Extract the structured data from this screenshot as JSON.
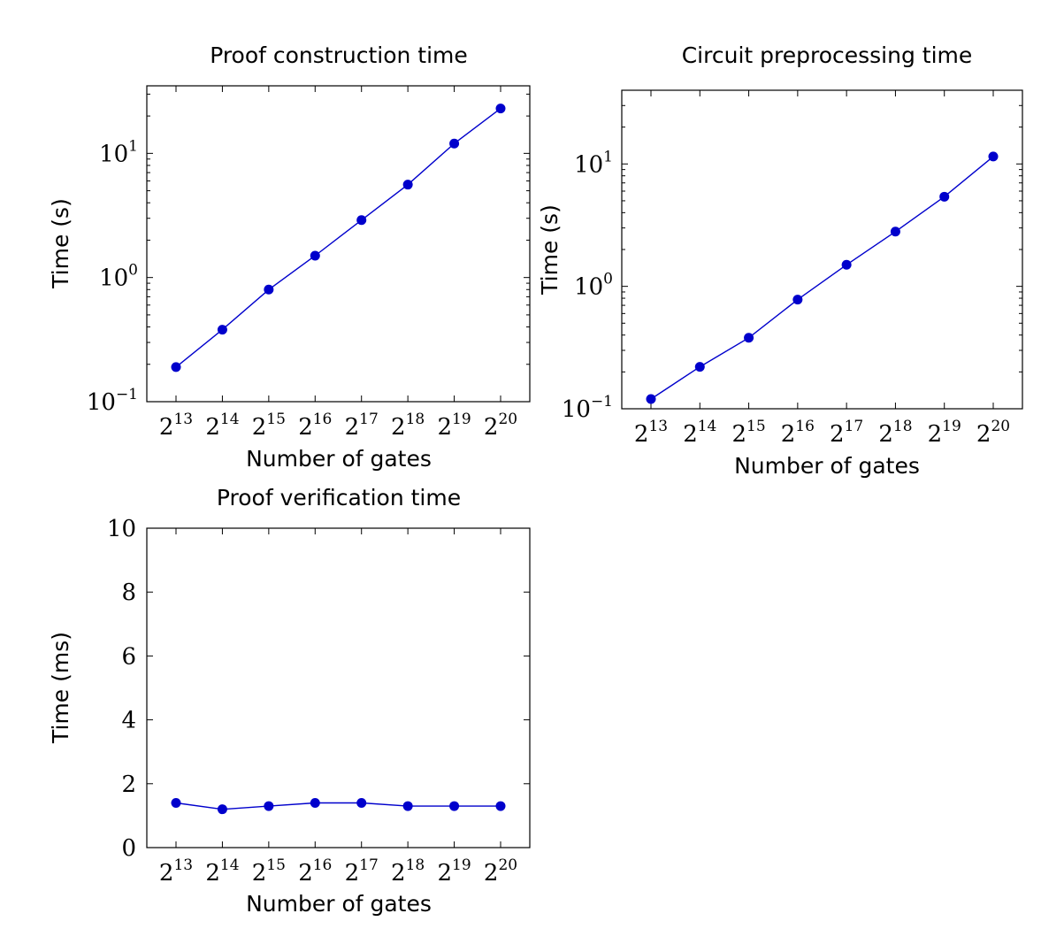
{
  "chart_data": [
    {
      "type": "line",
      "title": "Proof construction time",
      "xlabel": "Number of gates",
      "ylabel": "Time (s)",
      "yscale": "log",
      "ylim": [
        0.1,
        35
      ],
      "categories": [
        "2^13",
        "2^14",
        "2^15",
        "2^16",
        "2^17",
        "2^18",
        "2^19",
        "2^20"
      ],
      "ytick_labels": [
        "10^-1",
        "10^0",
        "10^1"
      ],
      "values": [
        0.19,
        0.38,
        0.8,
        1.5,
        2.9,
        5.6,
        12,
        23
      ],
      "color": "#0000cc",
      "grid": false
    },
    {
      "type": "line",
      "title": "Circuit preprocessing time",
      "xlabel": "Number of gates",
      "ylabel": "Time (s)",
      "yscale": "log",
      "ylim": [
        0.1,
        40
      ],
      "categories": [
        "2^13",
        "2^14",
        "2^15",
        "2^16",
        "2^17",
        "2^18",
        "2^19",
        "2^20"
      ],
      "ytick_labels": [
        "10^-1",
        "10^0",
        "10^1"
      ],
      "values": [
        0.12,
        0.22,
        0.38,
        0.78,
        1.5,
        2.8,
        5.4,
        11.5
      ],
      "color": "#0000cc",
      "grid": false
    },
    {
      "type": "line",
      "title": "Proof verification time",
      "xlabel": "Number of gates",
      "ylabel": "Time (ms)",
      "yscale": "linear",
      "ylim": [
        0,
        10
      ],
      "categories": [
        "2^13",
        "2^14",
        "2^15",
        "2^16",
        "2^17",
        "2^18",
        "2^19",
        "2^20"
      ],
      "ytick_labels": [
        "0",
        "2",
        "4",
        "6",
        "8",
        "10"
      ],
      "yticks": [
        0,
        2,
        4,
        6,
        8,
        10
      ],
      "values": [
        1.4,
        1.2,
        1.3,
        1.4,
        1.4,
        1.3,
        1.3,
        1.3
      ],
      "color": "#0000cc",
      "grid": false
    }
  ]
}
